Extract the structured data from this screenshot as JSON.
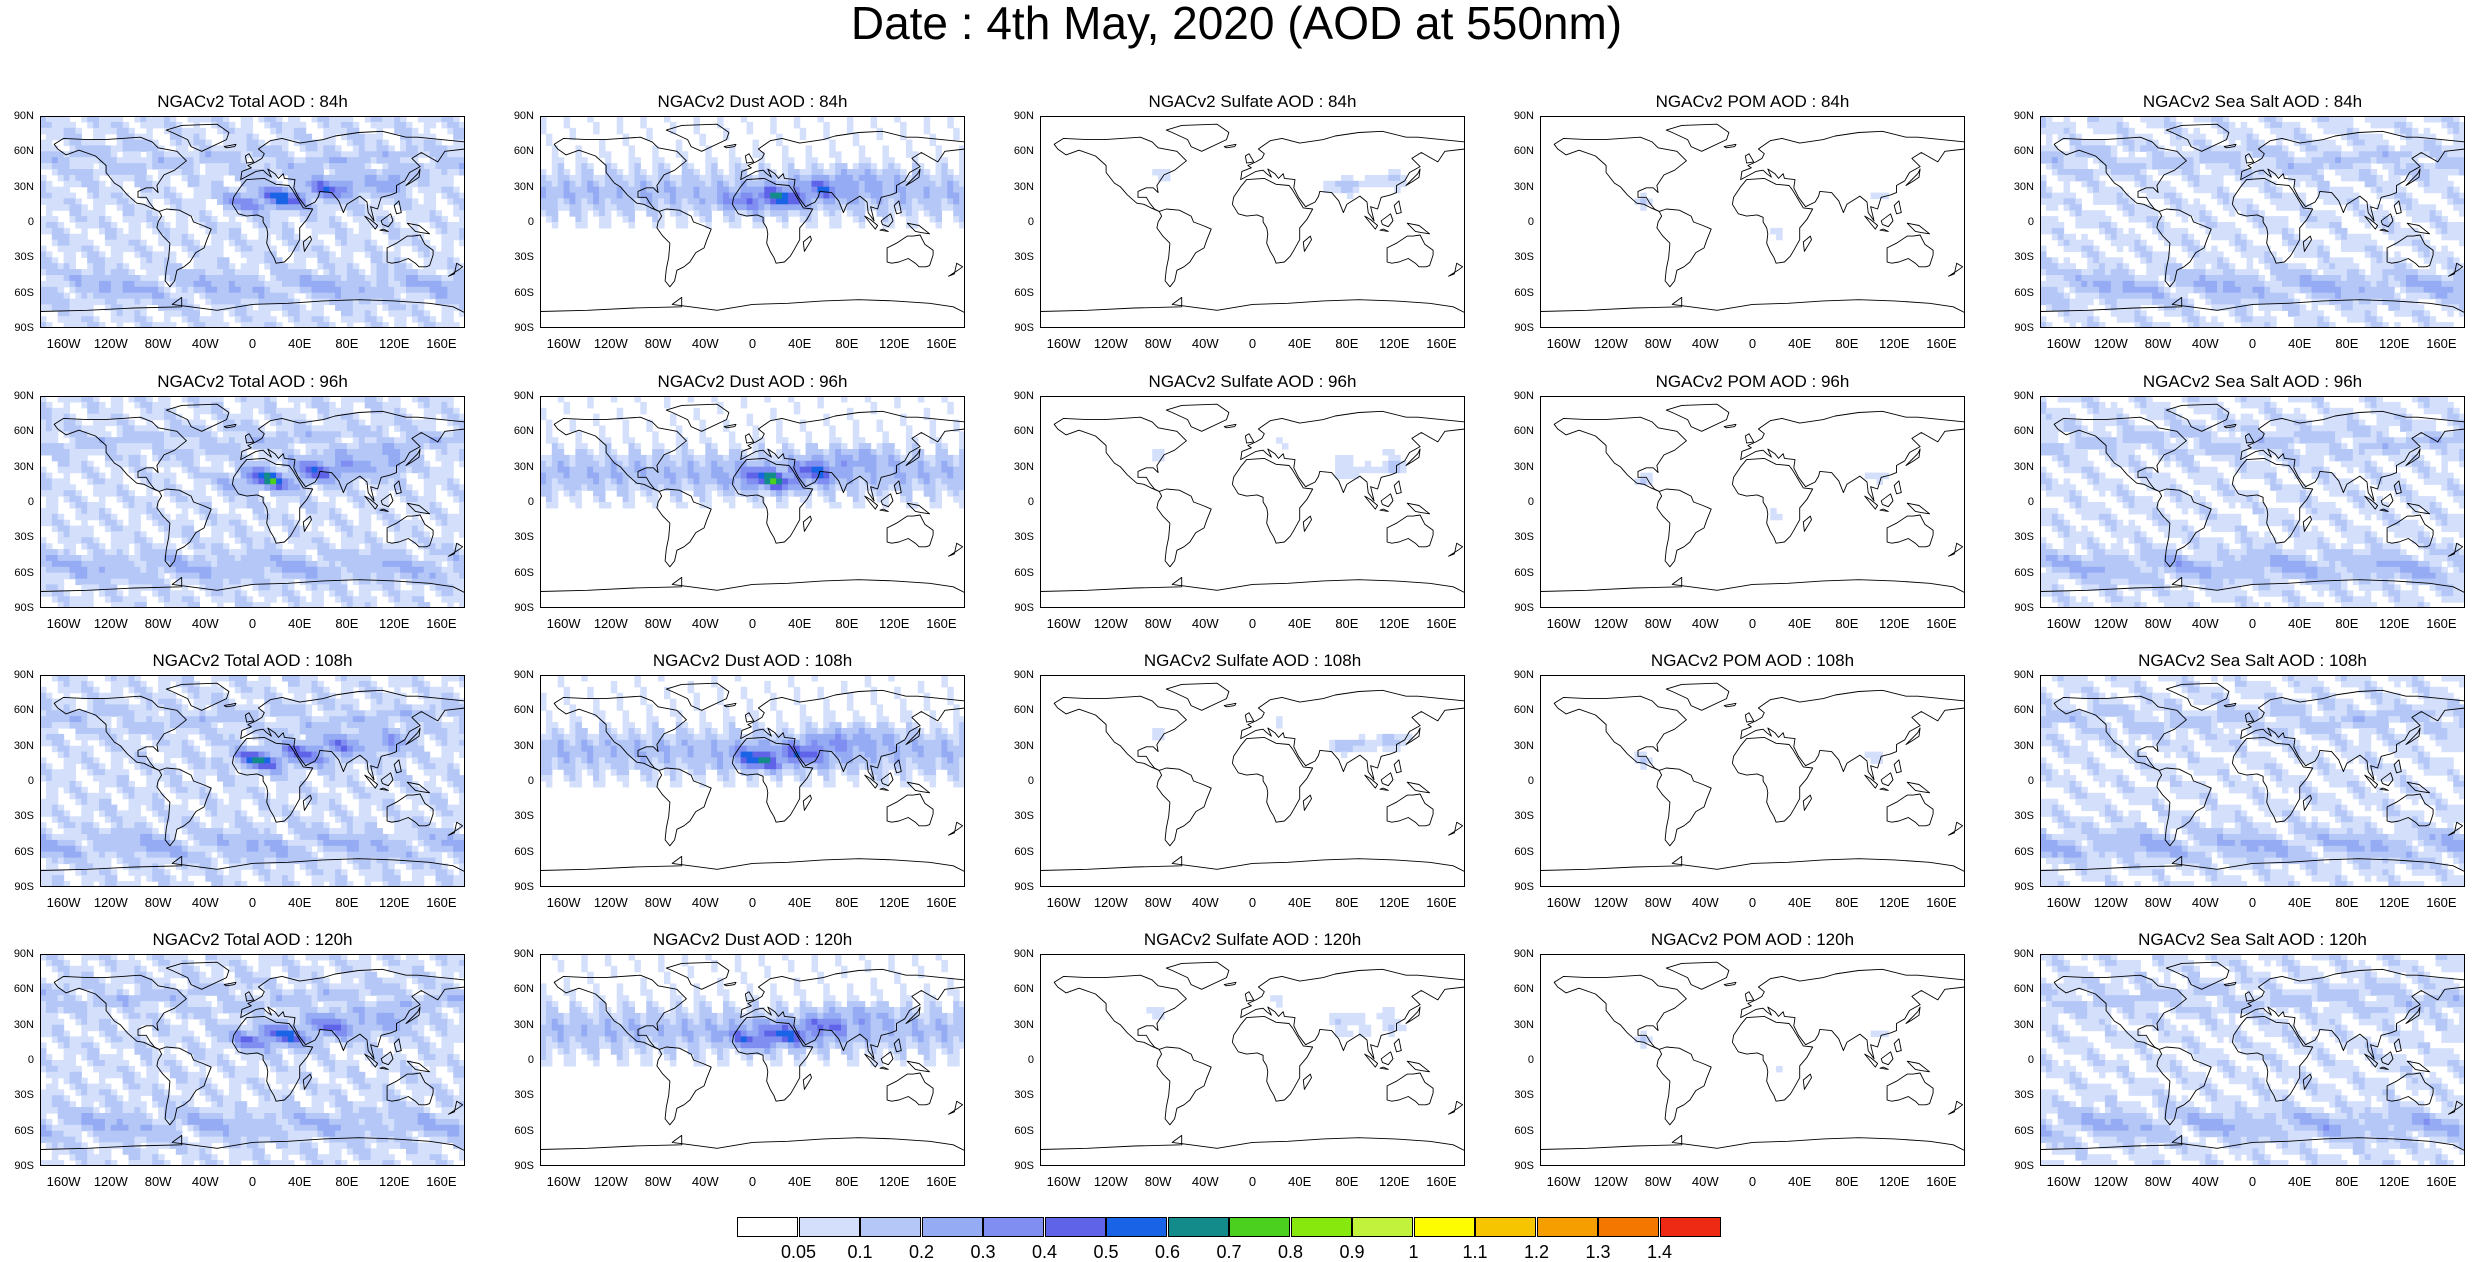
{
  "title": "Date : 4th May, 2020 (AOD at 550nm)",
  "lat_labels": [
    "90N",
    "60N",
    "30N",
    "0",
    "30S",
    "60S",
    "90S"
  ],
  "lon_labels": [
    "160W",
    "120W",
    "80W",
    "40W",
    "0",
    "40E",
    "80E",
    "120E",
    "160E"
  ],
  "panels": [
    {
      "title": "NGACv2 Total AOD : 84h",
      "species": "total",
      "hour": 84
    },
    {
      "title": "NGACv2 Dust AOD : 84h",
      "species": "dust",
      "hour": 84
    },
    {
      "title": "NGACv2 Sulfate AOD : 84h",
      "species": "sulfate",
      "hour": 84
    },
    {
      "title": "NGACv2 POM AOD : 84h",
      "species": "pom",
      "hour": 84
    },
    {
      "title": "NGACv2 Sea Salt AOD : 84h",
      "species": "seasalt",
      "hour": 84
    },
    {
      "title": "NGACv2 Total AOD : 96h",
      "species": "total",
      "hour": 96
    },
    {
      "title": "NGACv2 Dust AOD : 96h",
      "species": "dust",
      "hour": 96
    },
    {
      "title": "NGACv2 Sulfate AOD : 96h",
      "species": "sulfate",
      "hour": 96
    },
    {
      "title": "NGACv2 POM AOD : 96h",
      "species": "pom",
      "hour": 96
    },
    {
      "title": "NGACv2 Sea Salt AOD : 96h",
      "species": "seasalt",
      "hour": 96
    },
    {
      "title": "NGACv2 Total AOD : 108h",
      "species": "total",
      "hour": 108
    },
    {
      "title": "NGACv2 Dust AOD : 108h",
      "species": "dust",
      "hour": 108
    },
    {
      "title": "NGACv2 Sulfate AOD : 108h",
      "species": "sulfate",
      "hour": 108
    },
    {
      "title": "NGACv2 POM AOD : 108h",
      "species": "pom",
      "hour": 108
    },
    {
      "title": "NGACv2 Sea Salt AOD : 108h",
      "species": "seasalt",
      "hour": 108
    },
    {
      "title": "NGACv2 Total AOD : 120h",
      "species": "total",
      "hour": 120
    },
    {
      "title": "NGACv2 Dust AOD : 120h",
      "species": "dust",
      "hour": 120
    },
    {
      "title": "NGACv2 Sulfate AOD : 120h",
      "species": "sulfate",
      "hour": 120
    },
    {
      "title": "NGACv2 POM AOD : 120h",
      "species": "pom",
      "hour": 120
    },
    {
      "title": "NGACv2 Sea Salt  AOD : 120h",
      "species": "seasalt",
      "hour": 120
    }
  ],
  "colorbar": {
    "labels": [
      "0.05",
      "0.1",
      "0.2",
      "0.3",
      "0.4",
      "0.5",
      "0.6",
      "0.7",
      "0.8",
      "0.9",
      "1",
      "1.1",
      "1.2",
      "1.3",
      "1.4"
    ],
    "colors": [
      "#ffffff",
      "#d4e0fb",
      "#b4c7f7",
      "#95abf3",
      "#7f8ef0",
      "#5f63e8",
      "#1964e6",
      "#138b8b",
      "#4cd020",
      "#87e80e",
      "#c2f23c",
      "#fdfd00",
      "#f7c400",
      "#f69e00",
      "#f47800",
      "#ee2a14"
    ]
  }
}
